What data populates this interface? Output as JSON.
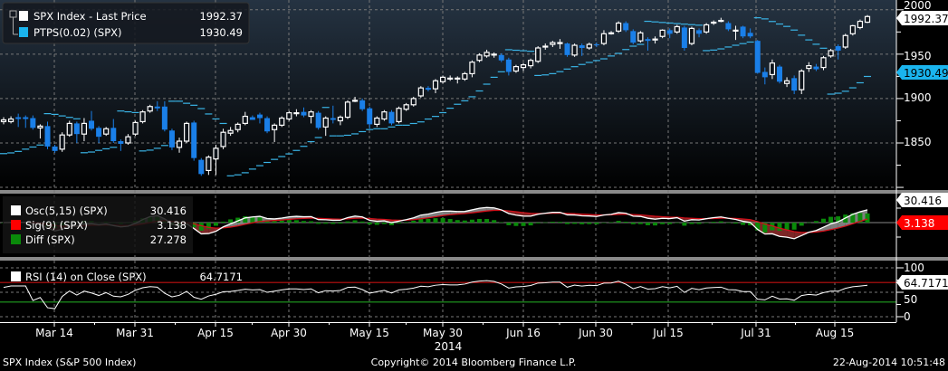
{
  "legend_price": {
    "items": [
      {
        "label": "SPX Index - Last Price",
        "value": "1992.37",
        "color": "#ffffff"
      },
      {
        "label": "PTPS(0.02) (SPX)",
        "value": "1930.49",
        "color": "#1ab4ee"
      }
    ]
  },
  "legend_osc": {
    "items": [
      {
        "label": "Osc(5,15) (SPX)",
        "value": "30.416",
        "color": "#ffffff"
      },
      {
        "label": "Sig(9) (SPX)",
        "value": "3.138",
        "color": "#ff0000"
      },
      {
        "label": "Diff (SPX)",
        "value": "27.278",
        "color": "#0a8a0a"
      }
    ]
  },
  "legend_rsi": {
    "items": [
      {
        "label": "RSI (14) on Close (SPX)",
        "value": "64.7171",
        "color": "#ffffff"
      }
    ]
  },
  "axis_tags": {
    "price_last": "1992.37",
    "sar_last": "1930.49",
    "osc_last": "30.416",
    "sig_last": "3.138",
    "rsi_last": "64.7171"
  },
  "price_axis": {
    "ticks": [
      "2000",
      "1950",
      "1900",
      "1850"
    ]
  },
  "rsi_axis": {
    "ticks": [
      "100",
      "50",
      "0"
    ]
  },
  "x_axis": {
    "ticks": [
      "Mar 14",
      "Mar 31",
      "Apr 15",
      "Apr 30",
      "May 15",
      "May 30",
      "Jun 16",
      "Jun 30",
      "Jul 15",
      "Jul 31",
      "Aug 15"
    ],
    "year": "2014"
  },
  "footer": {
    "security": "SPX Index (S&P 500 Index)",
    "copyright": "Copyright© 2014 Bloomberg Finance L.P.",
    "timestamp": "22-Aug-2014 10:51:48"
  },
  "colors": {
    "up_candle": "#ffffff",
    "down_candle": "#1a7fe8",
    "sar": "#3ab4e6",
    "osc": "#ffffff",
    "sig": "#d0101a",
    "diff": "#0a8a0a",
    "rsi": "#ffffff",
    "rsi_upper": "#c01010",
    "rsi_lower": "#20a020"
  },
  "chart_data": [
    {
      "type": "candlestick",
      "title": "SPX Index - Last Price",
      "ylim": [
        1797,
        2011
      ],
      "yticks": [
        2000,
        1950,
        1900,
        1850
      ],
      "grid": true,
      "legend": "top-left",
      "fields": [
        "open",
        "high",
        "low",
        "close"
      ],
      "candles": [
        [
          1874,
          1879,
          1871,
          1876
        ],
        [
          1874,
          1880,
          1872,
          1877
        ],
        [
          1879,
          1883,
          1868,
          1877
        ],
        [
          1879,
          1881,
          1867,
          1877
        ],
        [
          1878,
          1881,
          1865,
          1867
        ],
        [
          1867,
          1871,
          1855,
          1869
        ],
        [
          1869,
          1874,
          1843,
          1846
        ],
        [
          1846,
          1848,
          1839,
          1841
        ],
        [
          1843,
          1862,
          1840,
          1859
        ],
        [
          1859,
          1875,
          1857,
          1872
        ],
        [
          1872,
          1874,
          1850,
          1860
        ],
        [
          1860,
          1878,
          1852,
          1872
        ],
        [
          1875,
          1886,
          1864,
          1866
        ],
        [
          1867,
          1869,
          1850,
          1857
        ],
        [
          1860,
          1868,
          1858,
          1866
        ],
        [
          1867,
          1877,
          1850,
          1852
        ],
        [
          1852,
          1854,
          1841,
          1849
        ],
        [
          1850,
          1860,
          1848,
          1857
        ],
        [
          1860,
          1875,
          1858,
          1873
        ],
        [
          1874,
          1887,
          1872,
          1885
        ],
        [
          1886,
          1893,
          1884,
          1891
        ],
        [
          1891,
          1897,
          1886,
          1889
        ],
        [
          1891,
          1897,
          1863,
          1865
        ],
        [
          1864,
          1866,
          1842,
          1845
        ],
        [
          1845,
          1856,
          1839,
          1852
        ],
        [
          1852,
          1874,
          1850,
          1872
        ],
        [
          1873,
          1875,
          1830,
          1833
        ],
        [
          1831,
          1833,
          1813,
          1815
        ],
        [
          1819,
          1836,
          1814,
          1834
        ],
        [
          1832,
          1848,
          1814,
          1844
        ],
        [
          1846,
          1866,
          1843,
          1862
        ],
        [
          1861,
          1868,
          1858,
          1864
        ],
        [
          1865,
          1873,
          1862,
          1871
        ],
        [
          1872,
          1885,
          1870,
          1880
        ],
        [
          1879,
          1881,
          1876,
          1876
        ],
        [
          1882,
          1884,
          1872,
          1878
        ],
        [
          1878,
          1880,
          1861,
          1863
        ],
        [
          1865,
          1872,
          1851,
          1870
        ],
        [
          1870,
          1880,
          1868,
          1878
        ],
        [
          1877,
          1886,
          1875,
          1884
        ],
        [
          1884,
          1888,
          1880,
          1884
        ],
        [
          1885,
          1890,
          1879,
          1881
        ],
        [
          1880,
          1887,
          1872,
          1885
        ],
        [
          1884,
          1886,
          1865,
          1867
        ],
        [
          1868,
          1880,
          1858,
          1878
        ],
        [
          1878,
          1892,
          1872,
          1876
        ],
        [
          1875,
          1881,
          1870,
          1879
        ],
        [
          1879,
          1898,
          1877,
          1896
        ],
        [
          1898,
          1902,
          1896,
          1898
        ],
        [
          1898,
          1900,
          1886,
          1888
        ],
        [
          1889,
          1891,
          1866,
          1871
        ],
        [
          1871,
          1880,
          1868,
          1878
        ],
        [
          1877,
          1887,
          1875,
          1885
        ],
        [
          1885,
          1887,
          1870,
          1872
        ],
        [
          1874,
          1891,
          1872,
          1889
        ],
        [
          1888,
          1895,
          1886,
          1893
        ],
        [
          1893,
          1902,
          1891,
          1900
        ],
        [
          1903,
          1914,
          1901,
          1912
        ],
        [
          1912,
          1914,
          1908,
          1910
        ],
        [
          1911,
          1922,
          1906,
          1920
        ],
        [
          1919,
          1926,
          1917,
          1924
        ],
        [
          1923,
          1926,
          1920,
          1923
        ],
        [
          1923,
          1925,
          1917,
          1923
        ],
        [
          1922,
          1930,
          1920,
          1928
        ],
        [
          1928,
          1943,
          1924,
          1941
        ],
        [
          1943,
          1951,
          1941,
          1949
        ],
        [
          1948,
          1955,
          1946,
          1952
        ],
        [
          1950,
          1952,
          1946,
          1950
        ],
        [
          1949,
          1951,
          1941,
          1943
        ],
        [
          1944,
          1946,
          1926,
          1930
        ],
        [
          1931,
          1938,
          1929,
          1936
        ],
        [
          1935,
          1940,
          1931,
          1938
        ],
        [
          1937,
          1945,
          1934,
          1943
        ],
        [
          1942,
          1959,
          1940,
          1957
        ],
        [
          1958,
          1962,
          1955,
          1959
        ],
        [
          1961,
          1965,
          1958,
          1963
        ],
        [
          1963,
          1967,
          1956,
          1963
        ],
        [
          1962,
          1963,
          1947,
          1949
        ],
        [
          1949,
          1962,
          1947,
          1960
        ],
        [
          1960,
          1962,
          1948,
          1957
        ],
        [
          1957,
          1963,
          1955,
          1961
        ],
        [
          1961,
          1963,
          1958,
          1960
        ],
        [
          1962,
          1977,
          1960,
          1973
        ],
        [
          1974,
          1976,
          1972,
          1974
        ],
        [
          1976,
          1987,
          1974,
          1985
        ],
        [
          1985,
          1987,
          1975,
          1977
        ],
        [
          1976,
          1978,
          1961,
          1963
        ],
        [
          1965,
          1976,
          1963,
          1974
        ],
        [
          1967,
          1969,
          1954,
          1965
        ],
        [
          1967,
          1970,
          1962,
          1967
        ],
        [
          1970,
          1978,
          1968,
          1977
        ],
        [
          1977,
          1979,
          1968,
          1973
        ],
        [
          1975,
          1983,
          1973,
          1981
        ],
        [
          1980,
          1982,
          1954,
          1957
        ],
        [
          1962,
          1981,
          1960,
          1979
        ],
        [
          1977,
          1979,
          1969,
          1973
        ],
        [
          1975,
          1985,
          1973,
          1983
        ],
        [
          1986,
          1988,
          1983,
          1986
        ],
        [
          1988,
          1991,
          1986,
          1988
        ],
        [
          1985,
          1987,
          1976,
          1978
        ],
        [
          1977,
          1982,
          1966,
          1977
        ],
        [
          1981,
          1982,
          1968,
          1970
        ],
        [
          1974,
          1979,
          1968,
          1970
        ],
        [
          1965,
          1966,
          1928,
          1929
        ],
        [
          1930,
          1935,
          1916,
          1924
        ],
        [
          1927,
          1944,
          1922,
          1940
        ],
        [
          1936,
          1938,
          1917,
          1919
        ],
        [
          1917,
          1924,
          1913,
          1920
        ],
        [
          1923,
          1926,
          1905,
          1909
        ],
        [
          1910,
          1933,
          1905,
          1931
        ],
        [
          1934,
          1941,
          1930,
          1937
        ],
        [
          1936,
          1939,
          1931,
          1933
        ],
        [
          1935,
          1948,
          1932,
          1946
        ],
        [
          1948,
          1956,
          1946,
          1954
        ],
        [
          1959,
          1961,
          1944,
          1954
        ],
        [
          1958,
          1973,
          1956,
          1971
        ],
        [
          1973,
          1983,
          1971,
          1982
        ],
        [
          1980,
          1989,
          1978,
          1987
        ],
        [
          1986,
          1994,
          1985,
          1992.37
        ]
      ],
      "overlay": {
        "name": "PTPS(0.02) (SPX)",
        "step": 0.02,
        "max_step": 0.2,
        "last": 1930.49
      }
    },
    {
      "type": "line",
      "series": [
        {
          "name": "Osc(5,15) (SPX)",
          "last": 30.416
        },
        {
          "name": "Sig(9) (SPX)",
          "last": 3.138
        },
        {
          "name": "Diff (SPX)",
          "type": "bar",
          "last": 27.278
        }
      ],
      "ylim": [
        -45,
        39
      ]
    },
    {
      "type": "line",
      "series": [
        {
          "name": "RSI (14) on Close (SPX)",
          "last": 64.7171
        }
      ],
      "ylim": [
        0,
        100
      ],
      "yticks": [
        100,
        50,
        0
      ],
      "reference_lines": [
        70,
        30
      ]
    }
  ]
}
